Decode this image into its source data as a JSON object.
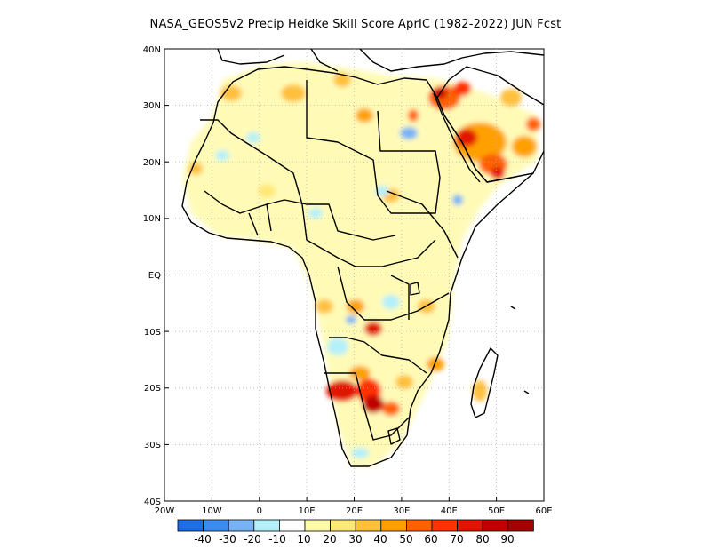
{
  "title": "NASA_GEOS5v2 Precip Heidke Skill Score AprIC (1982-2022) JUN Fcst",
  "map": {
    "lon_range": [
      -20,
      60
    ],
    "lat_range": [
      -40,
      40
    ],
    "lat_labels": [
      "40N",
      "30N",
      "20N",
      "10N",
      "EQ",
      "10S",
      "20S",
      "30S",
      "40S"
    ],
    "lon_labels": [
      "20W",
      "10W",
      "0",
      "10E",
      "20E",
      "30E",
      "40E",
      "50E",
      "60E"
    ]
  },
  "colorbar": {
    "labels": [
      "-40",
      "-30",
      "-20",
      "-10",
      "10",
      "20",
      "30",
      "40",
      "50",
      "60",
      "70",
      "80",
      "90"
    ],
    "colors": [
      "#1e6ee6",
      "#3c8cf0",
      "#78b4f5",
      "#b4f0fa",
      "#ffffff",
      "#fffaaa",
      "#ffe878",
      "#ffc03c",
      "#ffa000",
      "#ff6000",
      "#ff3200",
      "#e11400",
      "#c00000",
      "#a50000"
    ]
  }
}
